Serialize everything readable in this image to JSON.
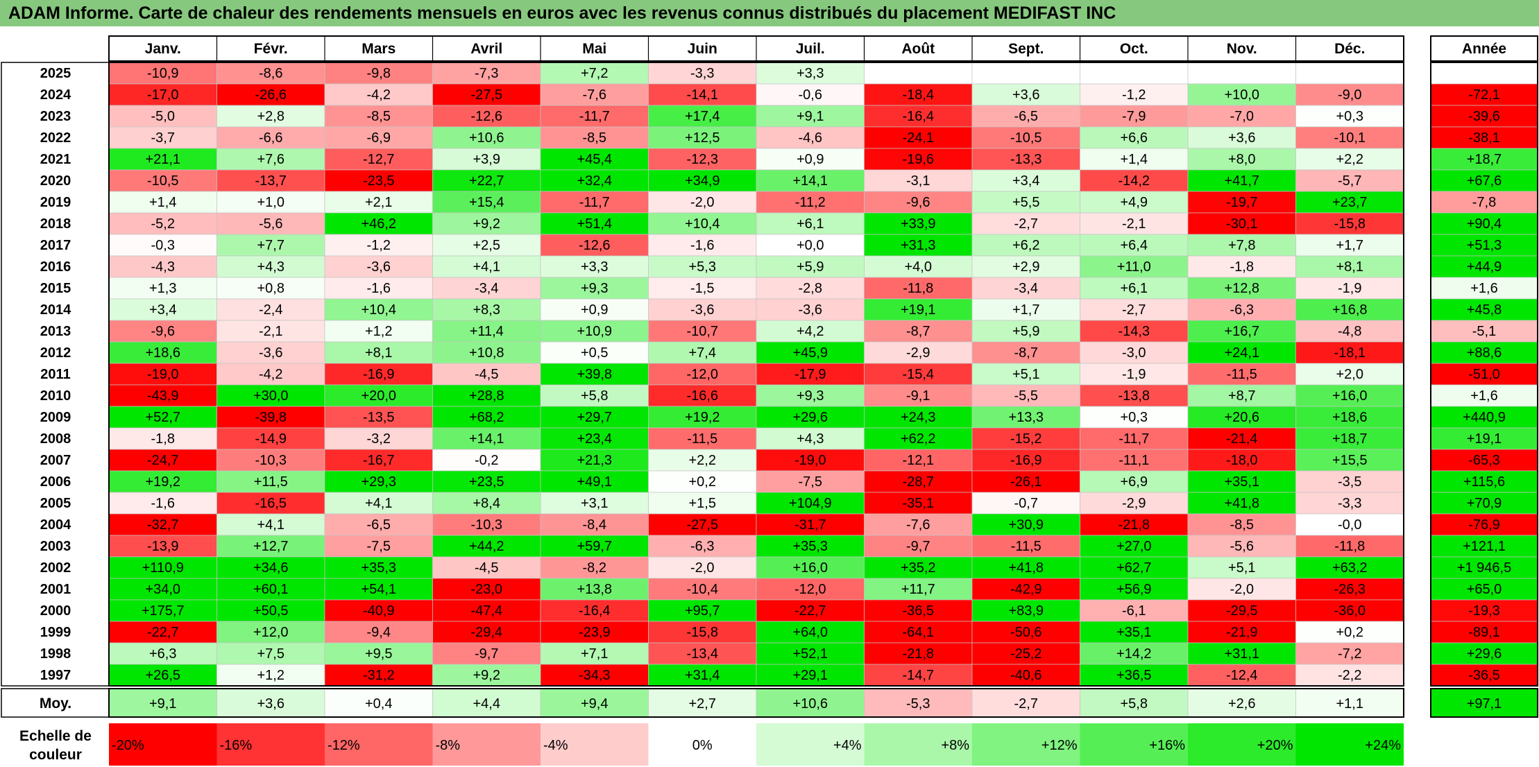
{
  "title": "ADAM Informe. Carte de chaleur des rendements mensuels en euros avec les revenus connus distribués du placement MEDIFAST INC",
  "chart_data": {
    "type": "heatmap",
    "columns": [
      "Janv.",
      "Févr.",
      "Mars",
      "Avril",
      "Mai",
      "Juin",
      "Juil.",
      "Août",
      "Sept.",
      "Oct.",
      "Nov.",
      "Déc."
    ],
    "year_column": "Année",
    "rows": [
      {
        "label": "2025",
        "values": [
          -10.9,
          -8.6,
          -9.8,
          -7.3,
          7.2,
          -3.3,
          3.3,
          null,
          null,
          null,
          null,
          null
        ],
        "year": null
      },
      {
        "label": "2024",
        "values": [
          -17.0,
          -26.6,
          -4.2,
          -27.5,
          -7.6,
          -14.1,
          -0.6,
          -18.4,
          3.6,
          -1.2,
          10.0,
          -9.0
        ],
        "year": -72.1
      },
      {
        "label": "2023",
        "values": [
          -5.0,
          2.8,
          -8.5,
          -12.6,
          -11.7,
          17.4,
          9.1,
          -16.4,
          -6.5,
          -7.9,
          -7.0,
          0.3
        ],
        "year": -39.6
      },
      {
        "label": "2022",
        "values": [
          -3.7,
          -6.6,
          -6.9,
          10.6,
          -8.5,
          12.5,
          -4.6,
          -24.1,
          -10.5,
          6.6,
          3.6,
          -10.1
        ],
        "year": -38.1
      },
      {
        "label": "2021",
        "values": [
          21.1,
          7.6,
          -12.7,
          3.9,
          45.4,
          -12.3,
          0.9,
          -19.6,
          -13.3,
          1.4,
          8.0,
          2.2
        ],
        "year": 18.7
      },
      {
        "label": "2020",
        "values": [
          -10.5,
          -13.7,
          -23.5,
          22.7,
          32.4,
          34.9,
          14.1,
          -3.1,
          3.4,
          -14.2,
          41.7,
          -5.7
        ],
        "year": 67.6
      },
      {
        "label": "2019",
        "values": [
          1.4,
          1.0,
          2.1,
          15.4,
          -11.7,
          -2.0,
          -11.2,
          -9.6,
          5.5,
          4.9,
          -19.7,
          23.7
        ],
        "year": -7.8
      },
      {
        "label": "2018",
        "values": [
          -5.2,
          -5.6,
          46.2,
          9.2,
          51.4,
          10.4,
          6.1,
          33.9,
          -2.7,
          -2.1,
          -30.1,
          -15.8
        ],
        "year": 90.4
      },
      {
        "label": "2017",
        "values": [
          -0.3,
          7.7,
          -1.2,
          2.5,
          -12.6,
          -1.6,
          0.0,
          31.3,
          6.2,
          6.4,
          7.8,
          1.7
        ],
        "year": 51.3
      },
      {
        "label": "2016",
        "values": [
          -4.3,
          4.3,
          -3.6,
          4.1,
          3.3,
          5.3,
          5.9,
          4.0,
          2.9,
          11.0,
          -1.8,
          8.1
        ],
        "year": 44.9
      },
      {
        "label": "2015",
        "values": [
          1.3,
          0.8,
          -1.6,
          -3.4,
          9.3,
          -1.5,
          -2.8,
          -11.8,
          -3.4,
          6.1,
          12.8,
          -1.9
        ],
        "year": 1.6
      },
      {
        "label": "2014",
        "values": [
          3.4,
          -2.4,
          10.4,
          8.3,
          0.9,
          -3.6,
          -3.6,
          19.1,
          1.7,
          -2.7,
          -6.3,
          16.8
        ],
        "year": 45.8
      },
      {
        "label": "2013",
        "values": [
          -9.6,
          -2.1,
          1.2,
          11.4,
          10.9,
          -10.7,
          4.2,
          -8.7,
          5.9,
          -14.3,
          16.7,
          -4.8
        ],
        "year": -5.1
      },
      {
        "label": "2012",
        "values": [
          18.6,
          -3.6,
          8.1,
          10.8,
          0.5,
          7.4,
          45.9,
          -2.9,
          -8.7,
          -3.0,
          24.1,
          -18.1
        ],
        "year": 88.6
      },
      {
        "label": "2011",
        "values": [
          -19.0,
          -4.2,
          -16.9,
          -4.5,
          39.8,
          -12.0,
          -17.9,
          -15.4,
          5.1,
          -1.9,
          -11.5,
          2.0
        ],
        "year": -51.0
      },
      {
        "label": "2010",
        "values": [
          -43.9,
          30.0,
          20.0,
          28.8,
          5.8,
          -16.6,
          9.3,
          -9.1,
          -5.5,
          -13.8,
          8.7,
          16.0
        ],
        "year": 1.6
      },
      {
        "label": "2009",
        "values": [
          52.7,
          -39.8,
          -13.5,
          68.2,
          29.7,
          19.2,
          29.6,
          24.3,
          13.3,
          0.3,
          20.6,
          18.6
        ],
        "year": 440.9
      },
      {
        "label": "2008",
        "values": [
          -1.8,
          -14.9,
          -3.2,
          14.1,
          23.4,
          -11.5,
          4.3,
          62.2,
          -15.2,
          -11.7,
          -21.4,
          18.7
        ],
        "year": 19.1
      },
      {
        "label": "2007",
        "values": [
          -24.7,
          -10.3,
          -16.7,
          -0.2,
          21.3,
          2.2,
          -19.0,
          -12.1,
          -16.9,
          -11.1,
          -18.0,
          15.5
        ],
        "year": -65.3
      },
      {
        "label": "2006",
        "values": [
          19.2,
          11.5,
          29.3,
          23.5,
          49.1,
          0.2,
          -7.5,
          -28.7,
          -26.1,
          6.9,
          35.1,
          -3.5
        ],
        "year": 115.6
      },
      {
        "label": "2005",
        "values": [
          -1.6,
          -16.5,
          4.1,
          8.4,
          3.1,
          1.5,
          104.9,
          -35.1,
          -0.7,
          -2.9,
          41.8,
          -3.3
        ],
        "year": 70.9
      },
      {
        "label": "2004",
        "values": [
          -32.7,
          4.1,
          -6.5,
          -10.3,
          -8.4,
          -27.5,
          -31.7,
          -7.6,
          30.9,
          -21.8,
          -8.5,
          -0.0
        ],
        "year": -76.9
      },
      {
        "label": "2003",
        "values": [
          -13.9,
          12.7,
          -7.5,
          44.2,
          59.7,
          -6.3,
          35.3,
          -9.7,
          -11.5,
          27.0,
          -5.6,
          -11.8
        ],
        "year": 121.1
      },
      {
        "label": "2002",
        "values": [
          110.9,
          34.6,
          35.3,
          -4.5,
          -8.2,
          -2.0,
          16.0,
          35.2,
          41.8,
          62.7,
          5.1,
          63.2
        ],
        "year": 1946.5
      },
      {
        "label": "2001",
        "values": [
          34.0,
          60.1,
          54.1,
          -23.0,
          13.8,
          -10.4,
          -12.0,
          11.7,
          -42.9,
          56.9,
          -2.0,
          -26.3
        ],
        "year": 65.0
      },
      {
        "label": "2000",
        "values": [
          175.7,
          50.5,
          -40.9,
          -47.4,
          -16.4,
          95.7,
          -22.7,
          -36.5,
          83.9,
          -6.1,
          -29.5,
          -36.0
        ],
        "year": -19.3
      },
      {
        "label": "1999",
        "values": [
          -22.7,
          12.0,
          -9.4,
          -29.4,
          -23.9,
          -15.8,
          64.0,
          -64.1,
          -50.6,
          35.1,
          -21.9,
          0.2
        ],
        "year": -89.1
      },
      {
        "label": "1998",
        "values": [
          6.3,
          7.5,
          9.5,
          -9.7,
          7.1,
          -13.4,
          52.1,
          -21.8,
          -25.2,
          14.2,
          31.1,
          -7.2
        ],
        "year": 29.6
      },
      {
        "label": "1997",
        "values": [
          26.5,
          1.2,
          -31.2,
          9.2,
          -34.3,
          31.4,
          29.1,
          -14.7,
          -40.6,
          36.5,
          -12.4,
          -2.2
        ],
        "year": -36.5
      }
    ],
    "average": {
      "label": "Moy.",
      "values": [
        9.1,
        3.6,
        0.4,
        4.4,
        9.4,
        2.7,
        10.6,
        -5.3,
        -2.7,
        5.8,
        2.6,
        1.1
      ],
      "year": 97.1
    },
    "display": {
      "rows": [
        "-10,9",
        "-17,0",
        "-5,0",
        "-3,7",
        "+21,1",
        "-10,5",
        "+1,4",
        "-5,2",
        "-0,3",
        "-4,3",
        "+1,3",
        "+3,4",
        "-9,6",
        "+18,6",
        "-19,0",
        "-43,9",
        "+52,7",
        "-1,8",
        "-24,7",
        "+19,2",
        "-1,6",
        "-32,7",
        "-13,9",
        "+110,9",
        "+34,0",
        "+175,7",
        "-22,7",
        "+6,3",
        "+26,5"
      ],
      "cells": [
        [
          "-10,9",
          "-8,6",
          "-9,8",
          "-7,3",
          "+7,2",
          "-3,3",
          "+3,3",
          "",
          "",
          "",
          "",
          ""
        ],
        [
          "-17,0",
          "-26,6",
          "-4,2",
          "-27,5",
          "-7,6",
          "-14,1",
          "-0,6",
          "-18,4",
          "+3,6",
          "-1,2",
          "+10,0",
          "-9,0"
        ],
        [
          "-5,0",
          "+2,8",
          "-8,5",
          "-12,6",
          "-11,7",
          "+17,4",
          "+9,1",
          "-16,4",
          "-6,5",
          "-7,9",
          "-7,0",
          "+0,3"
        ],
        [
          "-3,7",
          "-6,6",
          "-6,9",
          "+10,6",
          "-8,5",
          "+12,5",
          "-4,6",
          "-24,1",
          "-10,5",
          "+6,6",
          "+3,6",
          "-10,1"
        ],
        [
          "+21,1",
          "+7,6",
          "-12,7",
          "+3,9",
          "+45,4",
          "-12,3",
          "+0,9",
          "-19,6",
          "-13,3",
          "+1,4",
          "+8,0",
          "+2,2"
        ],
        [
          "-10,5",
          "-13,7",
          "-23,5",
          "+22,7",
          "+32,4",
          "+34,9",
          "+14,1",
          "-3,1",
          "+3,4",
          "-14,2",
          "+41,7",
          "-5,7"
        ],
        [
          "+1,4",
          "+1,0",
          "+2,1",
          "+15,4",
          "-11,7",
          "-2,0",
          "-11,2",
          "-9,6",
          "+5,5",
          "+4,9",
          "-19,7",
          "+23,7"
        ],
        [
          "-5,2",
          "-5,6",
          "+46,2",
          "+9,2",
          "+51,4",
          "+10,4",
          "+6,1",
          "+33,9",
          "-2,7",
          "-2,1",
          "-30,1",
          "-15,8"
        ],
        [
          "-0,3",
          "+7,7",
          "-1,2",
          "+2,5",
          "-12,6",
          "-1,6",
          "+0,0",
          "+31,3",
          "+6,2",
          "+6,4",
          "+7,8",
          "+1,7"
        ],
        [
          "-4,3",
          "+4,3",
          "-3,6",
          "+4,1",
          "+3,3",
          "+5,3",
          "+5,9",
          "+4,0",
          "+2,9",
          "+11,0",
          "-1,8",
          "+8,1"
        ],
        [
          "+1,3",
          "+0,8",
          "-1,6",
          "-3,4",
          "+9,3",
          "-1,5",
          "-2,8",
          "-11,8",
          "-3,4",
          "+6,1",
          "+12,8",
          "-1,9"
        ],
        [
          "+3,4",
          "-2,4",
          "+10,4",
          "+8,3",
          "+0,9",
          "-3,6",
          "-3,6",
          "+19,1",
          "+1,7",
          "-2,7",
          "-6,3",
          "+16,8"
        ],
        [
          "-9,6",
          "-2,1",
          "+1,2",
          "+11,4",
          "+10,9",
          "-10,7",
          "+4,2",
          "-8,7",
          "+5,9",
          "-14,3",
          "+16,7",
          "-4,8"
        ],
        [
          "+18,6",
          "-3,6",
          "+8,1",
          "+10,8",
          "+0,5",
          "+7,4",
          "+45,9",
          "-2,9",
          "-8,7",
          "-3,0",
          "+24,1",
          "-18,1"
        ],
        [
          "-19,0",
          "-4,2",
          "-16,9",
          "-4,5",
          "+39,8",
          "-12,0",
          "-17,9",
          "-15,4",
          "+5,1",
          "-1,9",
          "-11,5",
          "+2,0"
        ],
        [
          "-43,9",
          "+30,0",
          "+20,0",
          "+28,8",
          "+5,8",
          "-16,6",
          "+9,3",
          "-9,1",
          "-5,5",
          "-13,8",
          "+8,7",
          "+16,0"
        ],
        [
          "+52,7",
          "-39,8",
          "-13,5",
          "+68,2",
          "+29,7",
          "+19,2",
          "+29,6",
          "+24,3",
          "+13,3",
          "+0,3",
          "+20,6",
          "+18,6"
        ],
        [
          "-1,8",
          "-14,9",
          "-3,2",
          "+14,1",
          "+23,4",
          "-11,5",
          "+4,3",
          "+62,2",
          "-15,2",
          "-11,7",
          "-21,4",
          "+18,7"
        ],
        [
          "-24,7",
          "-10,3",
          "-16,7",
          "-0,2",
          "+21,3",
          "+2,2",
          "-19,0",
          "-12,1",
          "-16,9",
          "-11,1",
          "-18,0",
          "+15,5"
        ],
        [
          "+19,2",
          "+11,5",
          "+29,3",
          "+23,5",
          "+49,1",
          "+0,2",
          "-7,5",
          "-28,7",
          "-26,1",
          "+6,9",
          "+35,1",
          "-3,5"
        ],
        [
          "-1,6",
          "-16,5",
          "+4,1",
          "+8,4",
          "+3,1",
          "+1,5",
          "+104,9",
          "-35,1",
          "-0,7",
          "-2,9",
          "+41,8",
          "-3,3"
        ],
        [
          "-32,7",
          "+4,1",
          "-6,5",
          "-10,3",
          "-8,4",
          "-27,5",
          "-31,7",
          "-7,6",
          "+30,9",
          "-21,8",
          "-8,5",
          "-0,0"
        ],
        [
          "-13,9",
          "+12,7",
          "-7,5",
          "+44,2",
          "+59,7",
          "-6,3",
          "+35,3",
          "-9,7",
          "-11,5",
          "+27,0",
          "-5,6",
          "-11,8"
        ],
        [
          "+110,9",
          "+34,6",
          "+35,3",
          "-4,5",
          "-8,2",
          "-2,0",
          "+16,0",
          "+35,2",
          "+41,8",
          "+62,7",
          "+5,1",
          "+63,2"
        ],
        [
          "+34,0",
          "+60,1",
          "+54,1",
          "-23,0",
          "+13,8",
          "-10,4",
          "-12,0",
          "+11,7",
          "-42,9",
          "+56,9",
          "-2,0",
          "-26,3"
        ],
        [
          "+175,7",
          "+50,5",
          "-40,9",
          "-47,4",
          "-16,4",
          "+95,7",
          "-22,7",
          "-36,5",
          "+83,9",
          "-6,1",
          "-29,5",
          "-36,0"
        ],
        [
          "-22,7",
          "+12,0",
          "-9,4",
          "-29,4",
          "-23,9",
          "-15,8",
          "+64,0",
          "-64,1",
          "-50,6",
          "+35,1",
          "-21,9",
          "+0,2"
        ],
        [
          "+6,3",
          "+7,5",
          "+9,5",
          "-9,7",
          "+7,1",
          "-13,4",
          "+52,1",
          "-21,8",
          "-25,2",
          "+14,2",
          "+31,1",
          "-7,2"
        ],
        [
          "+26,5",
          "+1,2",
          "-31,2",
          "+9,2",
          "-34,3",
          "+31,4",
          "+29,1",
          "-14,7",
          "-40,6",
          "+36,5",
          "-12,4",
          "-2,2"
        ]
      ],
      "year": [
        "",
        "-72,1",
        "-39,6",
        "-38,1",
        "+18,7",
        "+67,6",
        "-7,8",
        "+90,4",
        "+51,3",
        "+44,9",
        "+1,6",
        "+45,8",
        "-5,1",
        "+88,6",
        "-51,0",
        "+1,6",
        "+440,9",
        "+19,1",
        "-65,3",
        "+115,6",
        "+70,9",
        "-76,9",
        "+121,1",
        "+1 946,5",
        "+65,0",
        "-19,3",
        "-89,1",
        "+29,6",
        "-36,5"
      ],
      "average": [
        "+9,1",
        "+3,6",
        "+0,4",
        "+4,4",
        "+9,4",
        "+2,7",
        "+10,6",
        "-5,3",
        "-2,7",
        "+5,8",
        "+2,6",
        "+1,1"
      ],
      "average_year": "+97,1"
    },
    "color_scale": {
      "label": "Echelle de couleur",
      "stops": [
        {
          "text": "-20%",
          "value": -20,
          "color": "#ff0000"
        },
        {
          "text": "-16%",
          "value": -16,
          "color": "#ff3333"
        },
        {
          "text": "-12%",
          "value": -12,
          "color": "#ff6666"
        },
        {
          "text": "-8%",
          "value": -8,
          "color": "#ff9999"
        },
        {
          "text": "-4%",
          "value": -4,
          "color": "#ffcccc"
        },
        {
          "text": "0%",
          "value": 0,
          "color": "#ffffff"
        },
        {
          "text": "+4%",
          "value": 4,
          "color": "#d5fbd5"
        },
        {
          "text": "+8%",
          "value": 8,
          "color": "#aaf7aa"
        },
        {
          "text": "+12%",
          "value": 12,
          "color": "#80f380"
        },
        {
          "text": "+16%",
          "value": 16,
          "color": "#55ef55"
        },
        {
          "text": "+20%",
          "value": 20,
          "color": "#2beb2b"
        },
        {
          "text": "+24%",
          "value": 24,
          "color": "#00e600"
        }
      ]
    }
  }
}
